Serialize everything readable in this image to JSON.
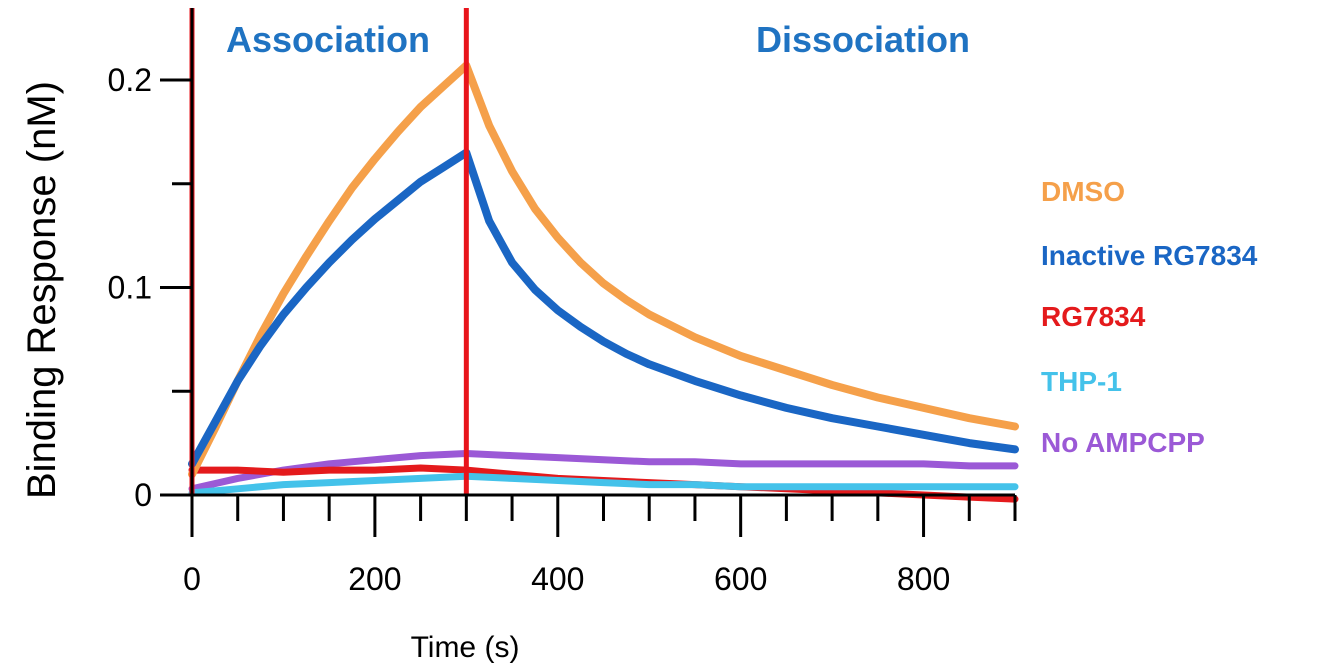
{
  "chart_data": {
    "type": "line",
    "xlabel": "Time (s)",
    "ylabel": "Binding Response (nM)",
    "xlim": [
      0,
      900
    ],
    "ylim": [
      0,
      0.2
    ],
    "x_ticks": [
      0,
      200,
      400,
      600,
      800
    ],
    "x_minor_ticks": [
      50,
      100,
      150,
      250,
      300,
      350,
      450,
      500,
      550,
      650,
      700,
      750,
      850,
      900
    ],
    "y_ticks": [
      0,
      0.1,
      0.2
    ],
    "y_tick_labels": [
      "0",
      "0.1",
      "0.2"
    ],
    "y_minor_ticks": [
      0.05,
      0.15
    ],
    "grid": false,
    "legend_position": "right",
    "vertical_markers": [
      {
        "x": 0,
        "color": "#e8141b"
      },
      {
        "x": 300,
        "color": "#e8141b"
      }
    ],
    "annotations": [
      {
        "text": "Association",
        "color": "#1f73c2"
      },
      {
        "text": "Dissociation",
        "color": "#1f73c2"
      }
    ],
    "series": [
      {
        "name": "DMSO",
        "color": "#f5a04a",
        "x": [
          0,
          25,
          50,
          75,
          100,
          125,
          150,
          175,
          200,
          225,
          250,
          275,
          300,
          325,
          350,
          375,
          400,
          425,
          450,
          475,
          500,
          550,
          600,
          650,
          700,
          750,
          800,
          850,
          900
        ],
        "y": [
          0.01,
          0.032,
          0.055,
          0.077,
          0.097,
          0.115,
          0.132,
          0.148,
          0.162,
          0.175,
          0.187,
          0.197,
          0.207,
          0.178,
          0.156,
          0.138,
          0.124,
          0.112,
          0.102,
          0.094,
          0.087,
          0.076,
          0.067,
          0.06,
          0.053,
          0.047,
          0.042,
          0.037,
          0.033
        ]
      },
      {
        "name": "Inactive RG7834",
        "color": "#1a66c4",
        "x": [
          0,
          25,
          50,
          75,
          100,
          125,
          150,
          175,
          200,
          225,
          250,
          275,
          300,
          325,
          350,
          375,
          400,
          425,
          450,
          475,
          500,
          550,
          600,
          650,
          700,
          750,
          800,
          850,
          900
        ],
        "y": [
          0.015,
          0.035,
          0.055,
          0.072,
          0.087,
          0.1,
          0.112,
          0.123,
          0.133,
          0.142,
          0.151,
          0.158,
          0.165,
          0.132,
          0.112,
          0.099,
          0.089,
          0.081,
          0.074,
          0.068,
          0.063,
          0.055,
          0.048,
          0.042,
          0.037,
          0.033,
          0.029,
          0.025,
          0.022
        ]
      },
      {
        "name": "RG7834",
        "color": "#e41a1c",
        "x": [
          0,
          50,
          100,
          150,
          200,
          250,
          300,
          350,
          400,
          450,
          500,
          550,
          600,
          650,
          700,
          750,
          800,
          850,
          900
        ],
        "y": [
          0.012,
          0.012,
          0.011,
          0.012,
          0.012,
          0.013,
          0.012,
          0.01,
          0.008,
          0.007,
          0.006,
          0.005,
          0.004,
          0.003,
          0.002,
          0.001,
          0.0,
          -0.001,
          -0.002
        ]
      },
      {
        "name": "THP-1",
        "color": "#44c2ea",
        "x": [
          0,
          50,
          100,
          150,
          200,
          250,
          300,
          350,
          400,
          450,
          500,
          550,
          600,
          650,
          700,
          750,
          800,
          850,
          900
        ],
        "y": [
          0.001,
          0.003,
          0.005,
          0.006,
          0.007,
          0.008,
          0.009,
          0.008,
          0.007,
          0.006,
          0.005,
          0.005,
          0.004,
          0.004,
          0.004,
          0.004,
          0.004,
          0.004,
          0.004
        ]
      },
      {
        "name": "No AMPCPP",
        "color": "#9b59d6",
        "x": [
          0,
          50,
          100,
          150,
          200,
          250,
          300,
          350,
          400,
          450,
          500,
          550,
          600,
          650,
          700,
          750,
          800,
          850,
          900
        ],
        "y": [
          0.003,
          0.008,
          0.012,
          0.015,
          0.017,
          0.019,
          0.02,
          0.019,
          0.018,
          0.017,
          0.016,
          0.016,
          0.015,
          0.015,
          0.015,
          0.015,
          0.015,
          0.014,
          0.014
        ]
      }
    ]
  }
}
